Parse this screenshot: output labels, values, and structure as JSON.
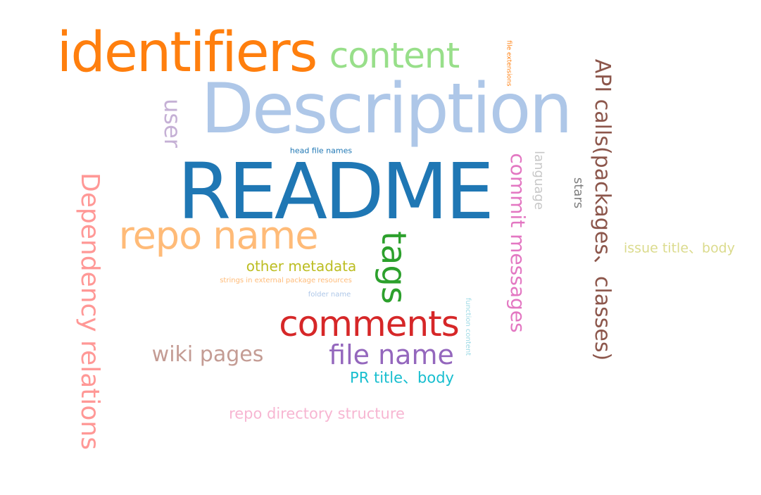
{
  "word_cloud": {
    "words": [
      {
        "id": "identifiers",
        "text": "identifiers",
        "color": "#ff7f0e",
        "orientation": "horizontal"
      },
      {
        "id": "content",
        "text": "content",
        "color": "#98df8a",
        "orientation": "horizontal"
      },
      {
        "id": "file_extensions",
        "text": "file extensions",
        "color": "#ff7f0e",
        "orientation": "vertical"
      },
      {
        "id": "description",
        "text": "Description",
        "color": "#aec7e8",
        "orientation": "horizontal"
      },
      {
        "id": "user",
        "text": "user",
        "color": "#c5b0d5",
        "orientation": "vertical"
      },
      {
        "id": "api_calls",
        "text": "API calls(packages、classes)",
        "color": "#8c564b",
        "orientation": "vertical"
      },
      {
        "id": "head_file_names",
        "text": "head file names",
        "color": "#1f77b4",
        "orientation": "horizontal"
      },
      {
        "id": "readme",
        "text": "README",
        "color": "#1f77b4",
        "orientation": "horizontal"
      },
      {
        "id": "dependency_relations",
        "text": "Dependency relations",
        "color": "#ff9896",
        "orientation": "vertical"
      },
      {
        "id": "language",
        "text": "language",
        "color": "#c7c7c7",
        "orientation": "vertical"
      },
      {
        "id": "commit_messages",
        "text": "commit messages",
        "color": "#e377c2",
        "orientation": "vertical"
      },
      {
        "id": "stars",
        "text": "stars",
        "color": "#7f7f7f",
        "orientation": "vertical"
      },
      {
        "id": "repo_name",
        "text": "repo name",
        "color": "#ffbb78",
        "orientation": "horizontal"
      },
      {
        "id": "tags",
        "text": "tags",
        "color": "#2ca02c",
        "orientation": "vertical"
      },
      {
        "id": "issue_title_body",
        "text": "issue title、body",
        "color": "#dbdb8d",
        "orientation": "horizontal"
      },
      {
        "id": "other_metadata",
        "text": "other metadata",
        "color": "#bcbd22",
        "orientation": "horizontal"
      },
      {
        "id": "strings_external",
        "text": "strings in external package resources",
        "color": "#ffbb78",
        "orientation": "horizontal"
      },
      {
        "id": "folder_name",
        "text": "folder name",
        "color": "#aec7e8",
        "orientation": "horizontal"
      },
      {
        "id": "function_content",
        "text": "function content",
        "color": "#9edae5",
        "orientation": "vertical"
      },
      {
        "id": "comments",
        "text": "comments",
        "color": "#d62728",
        "orientation": "horizontal"
      },
      {
        "id": "wiki_pages",
        "text": "wiki pages",
        "color": "#c49c94",
        "orientation": "horizontal"
      },
      {
        "id": "file_name",
        "text": "file name",
        "color": "#9467bd",
        "orientation": "horizontal"
      },
      {
        "id": "pr_title_body",
        "text": "PR title、body",
        "color": "#17becf",
        "orientation": "horizontal"
      },
      {
        "id": "repo_directory_structure",
        "text": "repo directory structure",
        "color": "#f7b6d2",
        "orientation": "horizontal"
      }
    ]
  }
}
